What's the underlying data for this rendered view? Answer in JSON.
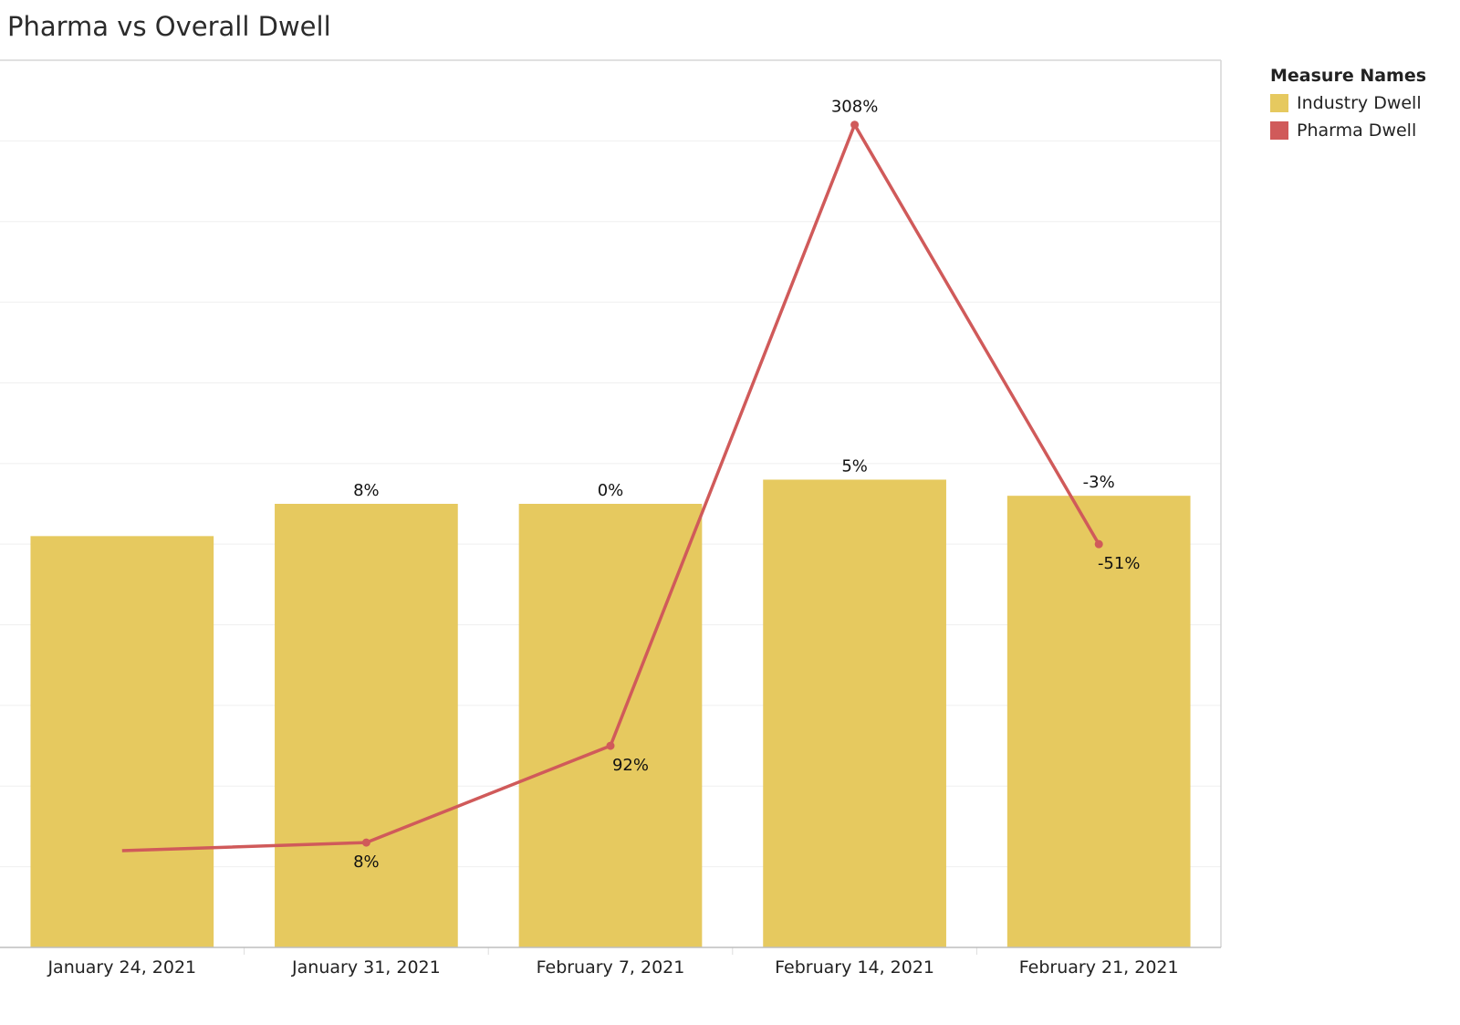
{
  "page": {
    "title": "Pharma vs Overall Dwell"
  },
  "legend": {
    "title": "Measure Names",
    "items": [
      {
        "label": "Industry Dwell",
        "color": "#E6C95F"
      },
      {
        "label": "Pharma Dwell",
        "color": "#D05A5A"
      }
    ]
  },
  "chart_data": {
    "type": "bar",
    "title": "Pharma vs Overall Dwell",
    "xlabel": "",
    "ylabel": "",
    "categories": [
      "January 24, 2021",
      "January 31, 2021",
      "February 7, 2021",
      "February 14, 2021",
      "February 21, 2021"
    ],
    "grid": true,
    "legend_position": "top-right",
    "y_axis_labels_shown": false,
    "series": [
      {
        "name": "Industry Dwell",
        "type": "bar",
        "color": "#E6C95F",
        "values": [
          51,
          55,
          55,
          58,
          56
        ],
        "labels": [
          "",
          "8%",
          "0%",
          "5%",
          "-3%"
        ]
      },
      {
        "name": "Pharma Dwell",
        "type": "line",
        "color": "#D05A5A",
        "values": [
          12,
          13,
          25,
          102,
          50
        ],
        "labels": [
          "",
          "8%",
          "92%",
          "308%",
          "-51%"
        ]
      }
    ],
    "ylim": [
      0,
      110
    ]
  }
}
